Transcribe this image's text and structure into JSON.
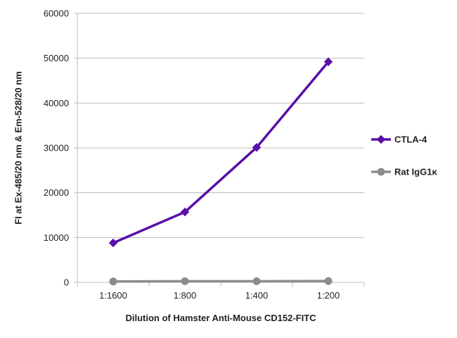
{
  "chart_data": {
    "type": "line",
    "title": "",
    "xlabel": "Dilution of Hamster Anti-Mouse CD152-FITC",
    "ylabel": "FI at Ex-485/20 nm & Em-528/20 nm",
    "categories": [
      "1:1600",
      "1:800",
      "1:400",
      "1:200"
    ],
    "ylim": [
      0,
      60000
    ],
    "yticks": [
      0,
      10000,
      20000,
      30000,
      40000,
      50000,
      60000
    ],
    "ytick_labels": [
      "0",
      "10000",
      "20000",
      "30000",
      "40000",
      "50000",
      "60000"
    ],
    "grid": "horizontal",
    "legend_position": "right",
    "series": [
      {
        "name": "CTLA-4",
        "values": [
          8800,
          15700,
          30100,
          49200
        ],
        "color": "#5a0fa8",
        "marker": "diamond"
      },
      {
        "name": "Rat IgG1κ",
        "values": [
          200,
          250,
          250,
          300
        ],
        "color": "#8c8c8c",
        "marker": "circle"
      }
    ]
  }
}
